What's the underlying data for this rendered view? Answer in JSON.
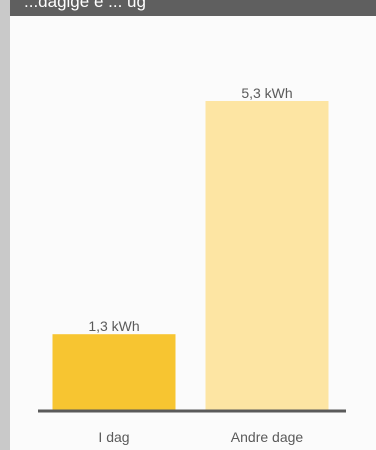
{
  "header": {
    "title": "...dagige e ... ug"
  },
  "colors": {
    "bar_today": "#f7c531",
    "bar_other": "#fde5a3",
    "axis": "#5a5a5a",
    "text": "#5a5a5a",
    "header_bg": "#5f5f5f"
  },
  "chart_data": {
    "type": "bar",
    "categories": [
      "I dag",
      "Andre dage"
    ],
    "values": [
      1.3,
      5.3
    ],
    "value_labels": [
      "1,3 kWh",
      "5,3 kWh"
    ],
    "unit": "kWh",
    "ylim": [
      0,
      5.3
    ],
    "grid": false,
    "legend": "none"
  }
}
